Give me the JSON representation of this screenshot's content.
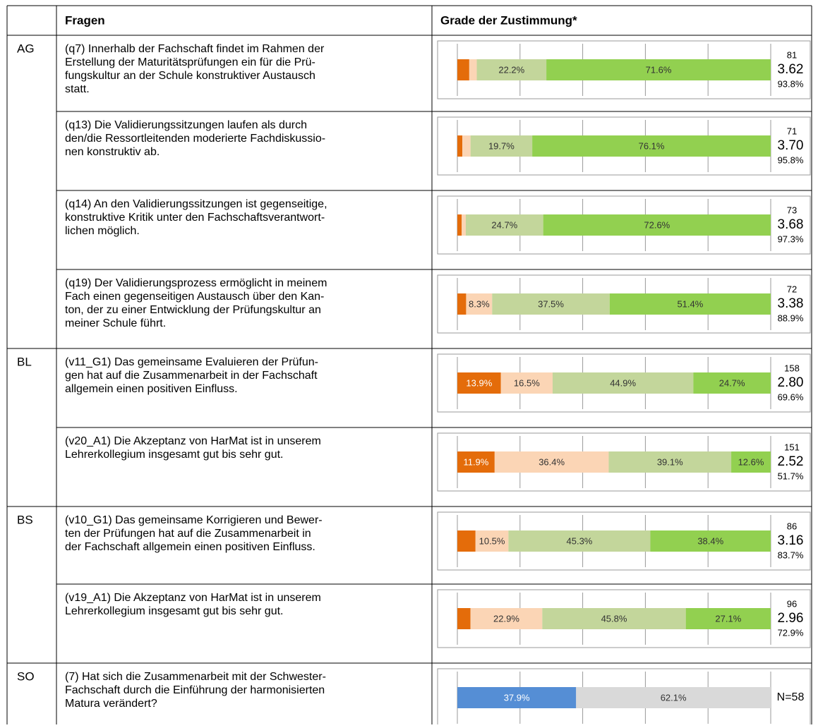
{
  "header": {
    "questions": "Fragen",
    "agreement": "Grade der Zustimmung*"
  },
  "colors": [
    "#e46c0a",
    "#fbd5b5",
    "#c3d69b",
    "#92d050"
  ],
  "groups": [
    {
      "label": "AG",
      "rows": [
        {
          "lines": [
            "(q7) Innerhalb der Fachschaft findet im Rahmen der",
            "Erstellung der Maturitätsprüfungen ein für die Prü-",
            "fungskultur an der Schule konstruktiver Austausch",
            "statt."
          ],
          "values": [
            3.8,
            2.4,
            22.2,
            71.6
          ],
          "value_labels": [
            null,
            null,
            "22.2%",
            "71.6%"
          ],
          "n": 81,
          "mean": "3.62",
          "agree": "93.8%"
        },
        {
          "lines": [
            "(q13) Die Validierungssitzungen laufen als durch",
            "den/die Ressortleitenden moderierte Fachdiskussio-",
            "nen konstruktiv ab."
          ],
          "values": [
            1.6,
            2.6,
            19.7,
            76.1
          ],
          "value_labels": [
            null,
            null,
            "19.7%",
            "76.1%"
          ],
          "n": 71,
          "mean": "3.70",
          "agree": "95.8%"
        },
        {
          "lines": [
            "(q14) An den Validierungssitzungen ist gegenseitige,",
            "konstruktive Kritik unter den Fachschaftsverantwort-",
            "lichen möglich."
          ],
          "values": [
            1.4,
            1.3,
            24.7,
            72.6
          ],
          "value_labels": [
            null,
            null,
            "24.7%",
            "72.6%"
          ],
          "n": 73,
          "mean": "3.68",
          "agree": "97.3%"
        },
        {
          "lines": [
            "(q19) Der Validierungsprozess ermöglicht in meinem",
            "Fach einen gegenseitigen Austausch über den Kan-",
            "ton, der zu einer Entwicklung der Prüfungskultur an",
            "meiner Schule führt."
          ],
          "values": [
            2.8,
            8.3,
            37.5,
            51.4
          ],
          "value_labels": [
            null,
            "8.3%",
            "37.5%",
            "51.4%"
          ],
          "n": 72,
          "mean": "3.38",
          "agree": "88.9%"
        }
      ]
    },
    {
      "label": "BL",
      "rows": [
        {
          "lines": [
            "(v11_G1) Das gemeinsame Evaluieren der Prüfun-",
            "gen hat auf die Zusammenarbeit in der Fachschaft",
            "allgemein einen positiven Einfluss."
          ],
          "values": [
            13.9,
            16.5,
            44.9,
            24.7
          ],
          "value_labels": [
            "13.9%",
            "16.5%",
            "44.9%",
            "24.7%"
          ],
          "n": 158,
          "mean": "2.80",
          "agree": "69.6%"
        },
        {
          "lines": [
            "(v20_A1) Die Akzeptanz von HarMat ist in unserem",
            "Lehrerkollegium insgesamt gut bis sehr gut."
          ],
          "values": [
            11.9,
            36.4,
            39.1,
            12.6
          ],
          "value_labels": [
            "11.9%",
            "36.4%",
            "39.1%",
            "12.6%"
          ],
          "n": 151,
          "mean": "2.52",
          "agree": "51.7%"
        }
      ]
    },
    {
      "label": "BS",
      "rows": [
        {
          "lines": [
            "(v10_G1) Das gemeinsame Korrigieren und Bewer-",
            "ten der Prüfungen hat auf die Zusammenarbeit in",
            "der Fachschaft allgemein einen positiven Einfluss."
          ],
          "values": [
            5.8,
            10.5,
            45.3,
            38.4
          ],
          "value_labels": [
            null,
            "10.5%",
            "45.3%",
            "38.4%"
          ],
          "n": 86,
          "mean": "3.16",
          "agree": "83.7%"
        },
        {
          "lines": [
            "(v19_A1) Die Akzeptanz von HarMat ist in unserem",
            "Lehrerkollegium insgesamt gut bis sehr gut."
          ],
          "values": [
            4.2,
            22.9,
            45.8,
            27.1
          ],
          "value_labels": [
            null,
            "22.9%",
            "45.8%",
            "27.1%"
          ],
          "n": 96,
          "mean": "2.96",
          "agree": "72.9%"
        }
      ]
    },
    {
      "label": "SO",
      "rows": [
        {
          "lines": [
            "(7) Hat sich die Zusammenarbeit mit der Schwester-",
            "Fachschaft durch die Einführung der harmonisierten",
            "Matura verändert?"
          ],
          "values": [
            37.9,
            62.1
          ],
          "value_labels": [
            "37.9%",
            "62.1%"
          ],
          "colors": [
            "#558ed5",
            "#d9d9d9"
          ],
          "note": "N=58"
        }
      ]
    }
  ]
}
